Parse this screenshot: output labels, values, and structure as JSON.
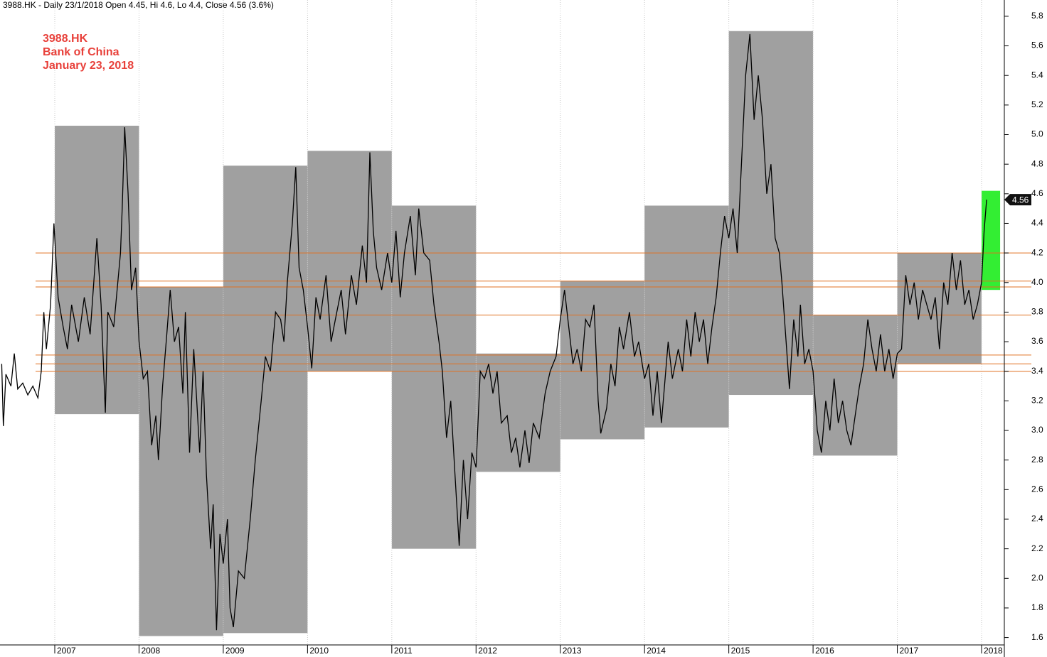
{
  "chart_data": {
    "type": "line",
    "header": "3988.HK - Daily 23/1/2018 Open 4.45, Hi 4.6, Lo 4.4, Close 4.56 (3.6%)",
    "annotations": [
      "3988.HK",
      "Bank of China",
      "January 23, 2018"
    ],
    "xlim": [
      2006.35,
      2018.27
    ],
    "ylim": [
      1.55,
      5.91
    ],
    "xticks": [
      2007,
      2008,
      2009,
      2010,
      2011,
      2012,
      2013,
      2014,
      2015,
      2016,
      2017,
      2018
    ],
    "yticks": [
      1.6,
      1.8,
      {
        "value": 2,
        "label": "2.0"
      },
      2.2,
      2.4,
      2.6,
      2.8,
      {
        "value": 3,
        "label": "3.0"
      },
      3.2,
      3.4,
      3.6,
      3.8,
      {
        "value": 4,
        "label": "4.0"
      },
      4.2,
      4.4,
      4.6,
      4.8,
      {
        "value": 5,
        "label": "5.0"
      },
      5.2,
      5.4,
      5.6,
      5.8
    ],
    "grid": true,
    "ranges": [
      {
        "x0": 2007,
        "x1": 2008,
        "high": 5.06,
        "low": 3.11,
        "color": "#a0a0a0"
      },
      {
        "x0": 2008,
        "x1": 2009,
        "high": 3.97,
        "low": 1.61,
        "color": "#a0a0a0"
      },
      {
        "x0": 2009,
        "x1": 2010,
        "high": 4.79,
        "low": 1.63,
        "color": "#a0a0a0"
      },
      {
        "x0": 2010,
        "x1": 2011,
        "high": 4.89,
        "low": 3.4,
        "color": "#a0a0a0"
      },
      {
        "x0": 2011,
        "x1": 2012,
        "high": 4.52,
        "low": 2.2,
        "color": "#a0a0a0"
      },
      {
        "x0": 2012,
        "x1": 2013,
        "high": 3.52,
        "low": 2.72,
        "color": "#a0a0a0"
      },
      {
        "x0": 2013,
        "x1": 2014,
        "high": 4.01,
        "low": 2.94,
        "color": "#a0a0a0"
      },
      {
        "x0": 2014,
        "x1": 2015,
        "high": 4.52,
        "low": 3.02,
        "color": "#a0a0a0"
      },
      {
        "x0": 2015,
        "x1": 2016,
        "high": 5.7,
        "low": 3.24,
        "color": "#a0a0a0"
      },
      {
        "x0": 2016,
        "x1": 2017,
        "high": 3.78,
        "low": 2.83,
        "color": "#a0a0a0"
      },
      {
        "x0": 2017,
        "x1": 2018,
        "high": 4.2,
        "low": 3.45,
        "color": "#a0a0a0"
      },
      {
        "x0": 2018,
        "x1": 2018.22,
        "high": 4.62,
        "low": 3.95,
        "color": "#33ee33"
      }
    ],
    "levels": [
      4.2,
      4.01,
      3.97,
      3.78,
      3.51,
      3.45,
      3.4
    ],
    "level_color": "#e07020",
    "series": [
      {
        "color": "#000000",
        "x": [
          2006.37,
          2006.39,
          2006.42,
          2006.48,
          2006.52,
          2006.56,
          2006.62,
          2006.68,
          2006.74,
          2006.8,
          2006.84,
          2006.87,
          2006.9,
          2006.95,
          2006.99,
          2007.04,
          2007.1,
          2007.15,
          2007.2,
          2007.28,
          2007.35,
          2007.42,
          2007.5,
          2007.55,
          2007.6,
          2007.63,
          2007.7,
          2007.78,
          2007.8,
          2007.83,
          2007.87,
          2007.91,
          2007.96,
          2008.0,
          2008.05,
          2008.1,
          2008.15,
          2008.2,
          2008.23,
          2008.28,
          2008.33,
          2008.37,
          2008.42,
          2008.47,
          2008.52,
          2008.55,
          2008.6,
          2008.65,
          2008.68,
          2008.72,
          2008.76,
          2008.8,
          2008.85,
          2008.88,
          2008.92,
          2008.96,
          2009.0,
          2009.05,
          2009.08,
          2009.12,
          2009.18,
          2009.25,
          2009.32,
          2009.38,
          2009.45,
          2009.5,
          2009.56,
          2009.62,
          2009.68,
          2009.72,
          2009.76,
          2009.82,
          2009.86,
          2009.9,
          2009.95,
          2010.0,
          2010.05,
          2010.1,
          2010.15,
          2010.22,
          2010.28,
          2010.33,
          2010.4,
          2010.45,
          2010.52,
          2010.58,
          2010.65,
          2010.7,
          2010.74,
          2010.78,
          2010.82,
          2010.88,
          2010.95,
          2011.0,
          2011.05,
          2011.1,
          2011.15,
          2011.22,
          2011.28,
          2011.32,
          2011.38,
          2011.45,
          2011.5,
          2011.56,
          2011.6,
          2011.65,
          2011.7,
          2011.75,
          2011.8,
          2011.85,
          2011.9,
          2011.95,
          2012.0,
          2012.05,
          2012.1,
          2012.15,
          2012.2,
          2012.25,
          2012.3,
          2012.37,
          2012.42,
          2012.47,
          2012.52,
          2012.58,
          2012.63,
          2012.68,
          2012.75,
          2012.82,
          2012.88,
          2012.95,
          2013.0,
          2013.05,
          2013.1,
          2013.15,
          2013.2,
          2013.25,
          2013.3,
          2013.35,
          2013.4,
          2013.45,
          2013.48,
          2013.55,
          2013.6,
          2013.65,
          2013.7,
          2013.75,
          2013.82,
          2013.88,
          2013.93,
          2014.0,
          2014.05,
          2014.1,
          2014.15,
          2014.2,
          2014.28,
          2014.33,
          2014.4,
          2014.45,
          2014.5,
          2014.55,
          2014.6,
          2014.65,
          2014.7,
          2014.75,
          2014.8,
          2014.85,
          2014.9,
          2014.95,
          2015.0,
          2015.05,
          2015.1,
          2015.15,
          2015.2,
          2015.25,
          2015.3,
          2015.35,
          2015.4,
          2015.45,
          2015.5,
          2015.55,
          2015.6,
          2015.63,
          2015.68,
          2015.72,
          2015.77,
          2015.82,
          2015.85,
          2015.9,
          2015.95,
          2016.0,
          2016.05,
          2016.1,
          2016.15,
          2016.2,
          2016.25,
          2016.3,
          2016.35,
          2016.4,
          2016.45,
          2016.5,
          2016.55,
          2016.6,
          2016.65,
          2016.7,
          2016.75,
          2016.8,
          2016.85,
          2016.9,
          2016.95,
          2017.0,
          2017.05,
          2017.1,
          2017.15,
          2017.2,
          2017.25,
          2017.3,
          2017.35,
          2017.4,
          2017.45,
          2017.5,
          2017.55,
          2017.6,
          2017.65,
          2017.7,
          2017.75,
          2017.8,
          2017.85,
          2017.9,
          2017.95,
          2018.0,
          2018.03,
          2018.06
        ],
        "values": [
          3.45,
          3.03,
          3.38,
          3.3,
          3.52,
          3.28,
          3.32,
          3.24,
          3.3,
          3.22,
          3.4,
          3.8,
          3.55,
          3.85,
          4.4,
          3.9,
          3.7,
          3.55,
          3.85,
          3.6,
          3.9,
          3.65,
          4.3,
          3.85,
          3.12,
          3.8,
          3.7,
          4.2,
          4.5,
          5.05,
          4.6,
          3.95,
          4.1,
          3.6,
          3.35,
          3.4,
          2.9,
          3.1,
          2.8,
          3.3,
          3.65,
          3.95,
          3.6,
          3.7,
          3.25,
          3.8,
          2.85,
          3.55,
          3.25,
          2.85,
          3.4,
          2.7,
          2.2,
          2.5,
          1.65,
          2.3,
          2.1,
          2.4,
          1.8,
          1.67,
          2.05,
          2.0,
          2.4,
          2.8,
          3.2,
          3.5,
          3.4,
          3.8,
          3.75,
          3.6,
          4.0,
          4.4,
          4.78,
          4.1,
          3.95,
          3.7,
          3.42,
          3.9,
          3.75,
          4.05,
          3.6,
          3.75,
          3.95,
          3.65,
          4.05,
          3.85,
          4.25,
          4.0,
          4.88,
          4.35,
          4.1,
          3.95,
          4.2,
          4.0,
          4.35,
          3.9,
          4.2,
          4.45,
          4.05,
          4.5,
          4.2,
          4.15,
          3.85,
          3.6,
          3.4,
          2.95,
          3.2,
          2.7,
          2.22,
          2.8,
          2.4,
          2.85,
          2.75,
          3.4,
          3.35,
          3.45,
          3.25,
          3.4,
          3.05,
          3.1,
          2.85,
          2.95,
          2.75,
          3.0,
          2.78,
          3.05,
          2.95,
          3.25,
          3.4,
          3.5,
          3.75,
          3.95,
          3.7,
          3.45,
          3.55,
          3.4,
          3.75,
          3.7,
          3.85,
          3.2,
          2.98,
          3.15,
          3.45,
          3.3,
          3.7,
          3.55,
          3.8,
          3.5,
          3.6,
          3.35,
          3.45,
          3.1,
          3.4,
          3.05,
          3.6,
          3.35,
          3.55,
          3.4,
          3.75,
          3.5,
          3.8,
          3.6,
          3.75,
          3.45,
          3.7,
          3.9,
          4.2,
          4.45,
          4.3,
          4.5,
          4.2,
          4.8,
          5.4,
          5.68,
          5.1,
          5.4,
          5.1,
          4.6,
          4.8,
          4.3,
          4.2,
          4.0,
          3.6,
          3.28,
          3.75,
          3.5,
          3.85,
          3.45,
          3.55,
          3.4,
          3.0,
          2.85,
          3.2,
          3.0,
          3.35,
          3.05,
          3.2,
          3.0,
          2.9,
          3.1,
          3.3,
          3.45,
          3.75,
          3.55,
          3.4,
          3.65,
          3.4,
          3.55,
          3.35,
          3.52,
          3.55,
          4.05,
          3.85,
          4.0,
          3.75,
          3.95,
          3.85,
          3.75,
          3.9,
          3.55,
          4.0,
          3.85,
          4.2,
          3.95,
          4.15,
          3.85,
          3.95,
          3.75,
          3.85,
          4.0,
          4.35,
          4.56
        ]
      }
    ]
  }
}
